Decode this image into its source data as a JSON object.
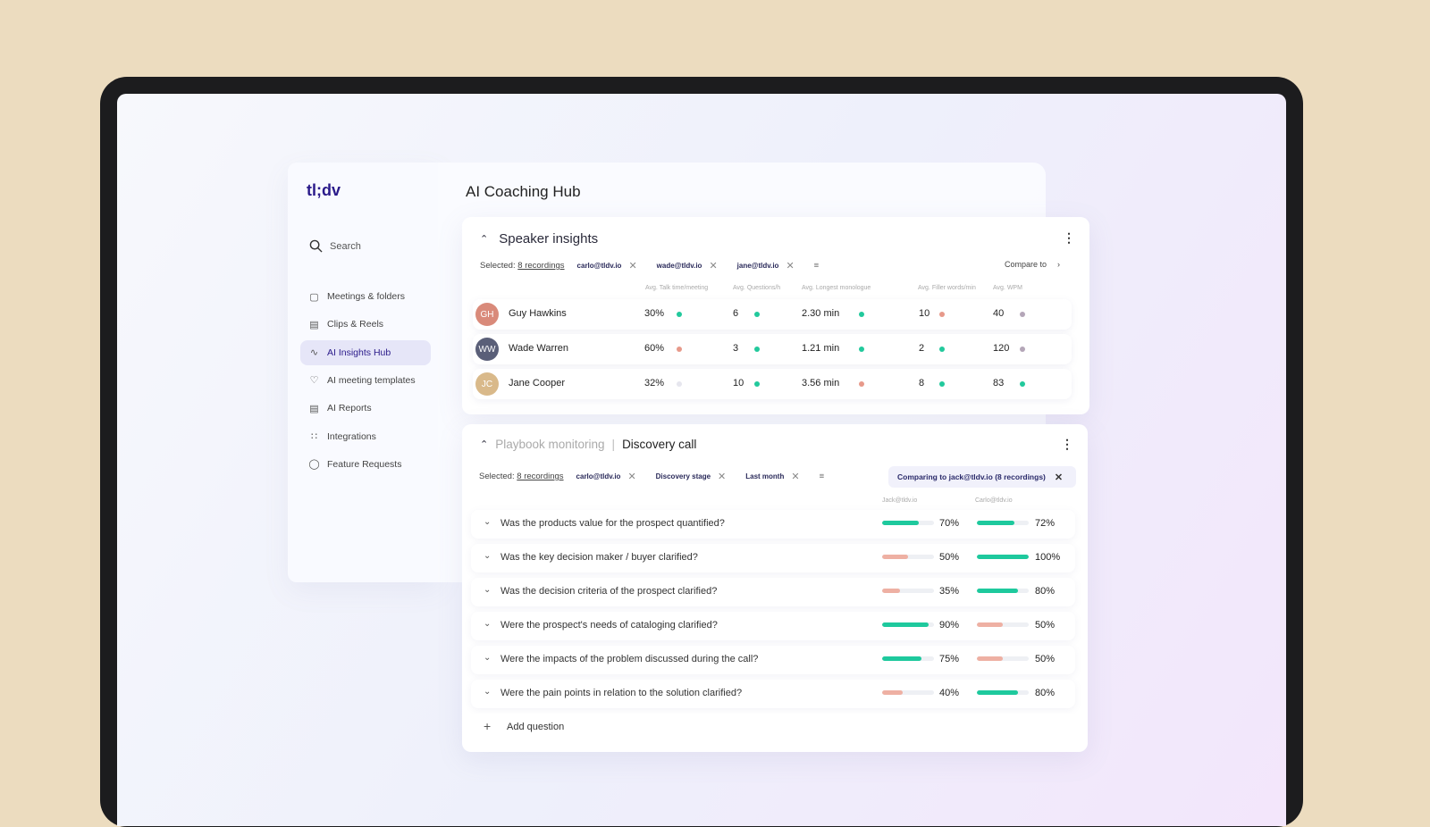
{
  "app": {
    "logo": "tl;dv",
    "page_title": "AI Coaching Hub"
  },
  "sidebar": {
    "search": "Search",
    "items": [
      {
        "label": "Meetings & folders",
        "icon": "video-icon",
        "active": false
      },
      {
        "label": "Clips & Reels",
        "icon": "clapper-icon",
        "active": false
      },
      {
        "label": "AI Insights Hub",
        "icon": "trend-icon",
        "active": true
      },
      {
        "label": "AI meeting templates",
        "icon": "tag-icon",
        "active": false
      },
      {
        "label": "AI Reports",
        "icon": "report-icon",
        "active": false
      },
      {
        "label": "Integrations",
        "icon": "grid-icon",
        "active": false
      },
      {
        "label": "Feature Requests",
        "icon": "bulb-icon",
        "active": false
      }
    ]
  },
  "speaker": {
    "title": "Speaker insights",
    "selected_label": "Selected:",
    "recordings": "8 recordings",
    "chips": [
      "carlo@tldv.io",
      "wade@tldv.io",
      "jane@tldv.io"
    ],
    "compare": "Compare to",
    "columns": [
      "Avg. Talk time/meeting",
      "Avg. Questions/h",
      "Avg. Longest monologue",
      "Avg. Filler words/min",
      "Avg. WPM"
    ],
    "rows": [
      {
        "name": "Guy Hawkins",
        "initials": "GH",
        "avatar_color": "#d98a7a",
        "values": [
          "30%",
          "6",
          "2.30 min",
          "10",
          "40"
        ],
        "status": [
          "#22c99c",
          "#22c99c",
          "#22c99c",
          "#e7998a",
          "#b4a6b8"
        ]
      },
      {
        "name": "Wade Warren",
        "initials": "WW",
        "avatar_color": "#5a5f78",
        "values": [
          "60%",
          "3",
          "1.21 min",
          "2",
          "120"
        ],
        "status": [
          "#e7998a",
          "#22c99c",
          "#22c99c",
          "#22c99c",
          "#b4a6b8"
        ]
      },
      {
        "name": "Jane Cooper",
        "initials": "JC",
        "avatar_color": "#d9b98a",
        "values": [
          "32%",
          "10",
          "3.56 min",
          "8",
          "83"
        ],
        "status": [
          "#e6e6ee",
          "#22c99c",
          "#e7998a",
          "#22c99c",
          "#22c99c"
        ]
      }
    ]
  },
  "playbook": {
    "section": "Playbook monitoring",
    "separator": "|",
    "title": "Discovery call",
    "selected_label": "Selected:",
    "recordings": "8 recordings",
    "chips": [
      "carlo@tldv.io",
      "Discovery stage",
      "Last month"
    ],
    "comparing": "Comparing to jack@tldv.io (8 recordings)",
    "columns": [
      "Jack@tldv.io",
      "Carlo@tldv.io"
    ],
    "questions": [
      {
        "text": "Was the products value for the prospect quantified?",
        "a": 70,
        "a_label": "70%",
        "b": 72,
        "b_label": "72%"
      },
      {
        "text": "Was the key decision maker / buyer clarified?",
        "a": 50,
        "a_label": "50%",
        "b": 100,
        "b_label": "100%"
      },
      {
        "text": "Was the decision criteria of the prospect clarified?",
        "a": 35,
        "a_label": "35%",
        "b": 80,
        "b_label": "80%"
      },
      {
        "text": "Were the prospect's needs of cataloging clarified?",
        "a": 90,
        "a_label": "90%",
        "b": 50,
        "b_label": "50%"
      },
      {
        "text": "Were the impacts of the problem discussed during the call?",
        "a": 75,
        "a_label": "75%",
        "b": 50,
        "b_label": "50%"
      },
      {
        "text": "Were the pain points in relation to the solution clarified?",
        "a": 40,
        "a_label": "40%",
        "b": 80,
        "b_label": "80%"
      }
    ],
    "add_question": "Add question"
  },
  "colors": {
    "good": "#1ec99d",
    "bad": "#eeb0a3",
    "brand": "#2a1a8a"
  }
}
